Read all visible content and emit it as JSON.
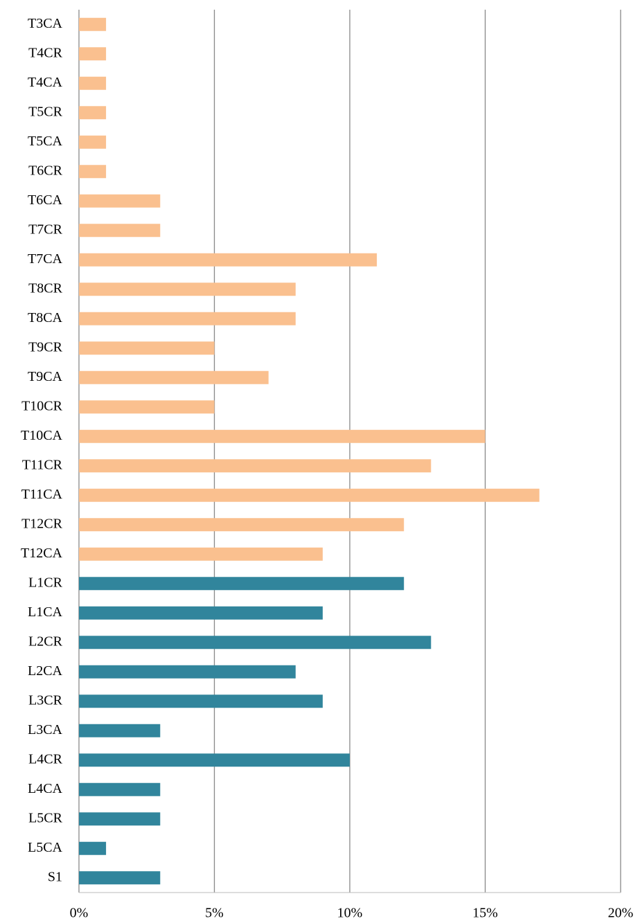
{
  "chart_data": {
    "type": "hbar",
    "categories": [
      "T3CA",
      "T4CR",
      "T4CA",
      "T5CR",
      "T5CA",
      "T6CR",
      "T6CA",
      "T7CR",
      "T7CA",
      "T8CR",
      "T8CA",
      "T9CR",
      "T9CA",
      "T10CR",
      "T10CA",
      "T11CR",
      "T11CA",
      "T12CR",
      "T12CA",
      "L1CR",
      "L1CA",
      "L2CR",
      "L2CA",
      "L3CR",
      "L3CA",
      "L4CR",
      "L4CA",
      "L5CR",
      "L5CA",
      "S1"
    ],
    "values": [
      1,
      1,
      1,
      1,
      1,
      1,
      3,
      3,
      11,
      8,
      8,
      5,
      7,
      5,
      15,
      13,
      17,
      12,
      9,
      12,
      9,
      13,
      8,
      9,
      3,
      10,
      3,
      3,
      1,
      3
    ],
    "colors": [
      "#fac08f",
      "#fac08f",
      "#fac08f",
      "#fac08f",
      "#fac08f",
      "#fac08f",
      "#fac08f",
      "#fac08f",
      "#fac08f",
      "#fac08f",
      "#fac08f",
      "#fac08f",
      "#fac08f",
      "#fac08f",
      "#fac08f",
      "#fac08f",
      "#fac08f",
      "#fac08f",
      "#fac08f",
      "#31859c",
      "#31859c",
      "#31859c",
      "#31859c",
      "#31859c",
      "#31859c",
      "#31859c",
      "#31859c",
      "#31859c",
      "#31859c",
      "#31859c"
    ],
    "xlim": [
      0,
      20
    ],
    "xticks": [
      {
        "value": 0,
        "label": "0%"
      },
      {
        "value": 5,
        "label": "5%"
      },
      {
        "value": 10,
        "label": "10%"
      },
      {
        "value": 15,
        "label": "15%"
      },
      {
        "value": 20,
        "label": "20%"
      }
    ],
    "grid": true
  }
}
